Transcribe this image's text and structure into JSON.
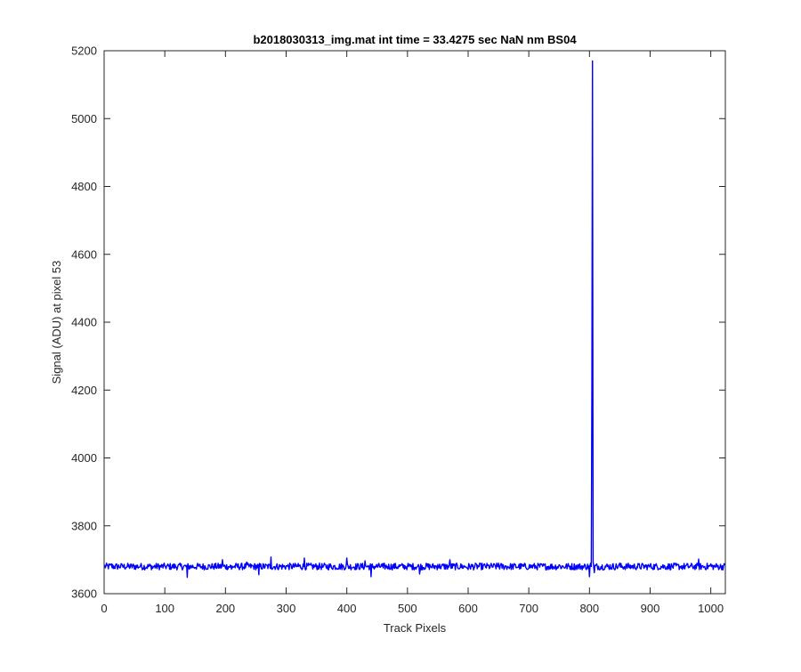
{
  "chart_data": {
    "type": "line",
    "title": "b2018030313_img.mat int time = 33.4275 sec  NaN nm BS04",
    "xlabel": "Track Pixels",
    "ylabel": "Signal (ADU) at pixel 53",
    "xlim": [
      0,
      1024
    ],
    "ylim": [
      3600,
      5200
    ],
    "xticks": [
      0,
      100,
      200,
      300,
      400,
      500,
      600,
      700,
      800,
      900,
      1000
    ],
    "yticks": [
      3600,
      3800,
      4000,
      4200,
      4400,
      4600,
      4800,
      5000,
      5200
    ],
    "grid": false,
    "legend": "none",
    "series": [
      {
        "color": "#0000ff",
        "baseline": 3680,
        "noise_amplitude": 10,
        "points": [
          [
            0,
            3679
          ],
          [
            12,
            3688
          ],
          [
            30,
            3684
          ],
          [
            60,
            3683
          ],
          [
            80,
            3675
          ],
          [
            100,
            3682
          ],
          [
            137,
            3648
          ],
          [
            150,
            3677
          ],
          [
            180,
            3680
          ],
          [
            195,
            3700
          ],
          [
            210,
            3672
          ],
          [
            235,
            3693
          ],
          [
            255,
            3656
          ],
          [
            275,
            3708
          ],
          [
            300,
            3682
          ],
          [
            320,
            3689
          ],
          [
            330,
            3705
          ],
          [
            360,
            3678
          ],
          [
            400,
            3705
          ],
          [
            430,
            3697
          ],
          [
            440,
            3650
          ],
          [
            460,
            3676
          ],
          [
            500,
            3682
          ],
          [
            520,
            3658
          ],
          [
            550,
            3686
          ],
          [
            570,
            3700
          ],
          [
            600,
            3671
          ],
          [
            650,
            3690
          ],
          [
            700,
            3676
          ],
          [
            750,
            3685
          ],
          [
            790,
            3676
          ],
          [
            800,
            3650
          ],
          [
            802,
            3690
          ],
          [
            804,
            4220
          ],
          [
            805,
            5170
          ],
          [
            806,
            3695
          ],
          [
            808,
            3662
          ],
          [
            850,
            3690
          ],
          [
            900,
            3684
          ],
          [
            950,
            3680
          ],
          [
            980,
            3702
          ],
          [
            1000,
            3688
          ],
          [
            1024,
            3683
          ]
        ]
      }
    ]
  }
}
